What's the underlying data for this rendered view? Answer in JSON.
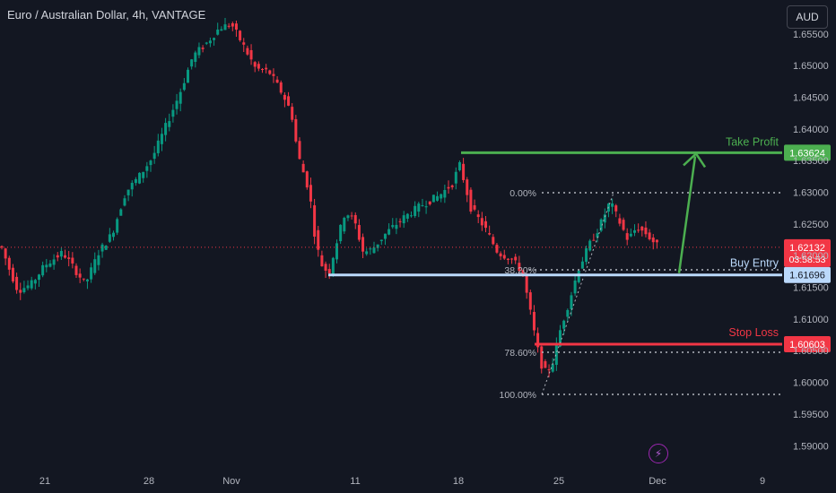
{
  "header": {
    "symbol_title": "Euro / Australian Dollar, 4h, VANTAGE"
  },
  "toolbar": {
    "currency_label": "AUD"
  },
  "chart_data": {
    "type": "candlestick",
    "y_ticks": [
      "1.65500",
      "1.65000",
      "1.64500",
      "1.64000",
      "1.63500",
      "1.63000",
      "1.62500",
      "1.62000",
      "1.61500",
      "1.61000",
      "1.60500",
      "1.60000",
      "1.59500",
      "1.59000"
    ],
    "x_ticks": [
      "21",
      "28",
      "Nov",
      "11",
      "18",
      "25",
      "Dec",
      "9"
    ],
    "ylim": [
      1.5865,
      1.6595
    ],
    "last_price": {
      "value": "1.62132",
      "countdown": "03:58:53",
      "color": "#f23645"
    },
    "levels": [
      {
        "name": "Take Profit",
        "value": "1.63624",
        "color": "#4caf50"
      },
      {
        "name": "Buy Entry",
        "value": "1.61696",
        "color": "#bbd9fb"
      },
      {
        "name": "Stop Loss",
        "value": "1.60603",
        "color": "#f23645"
      }
    ],
    "fib_levels": [
      "0.00%",
      "38.20%",
      "78.60%",
      "100.00%"
    ],
    "candle_colors": {
      "up": "#089981",
      "down": "#f23645"
    }
  }
}
